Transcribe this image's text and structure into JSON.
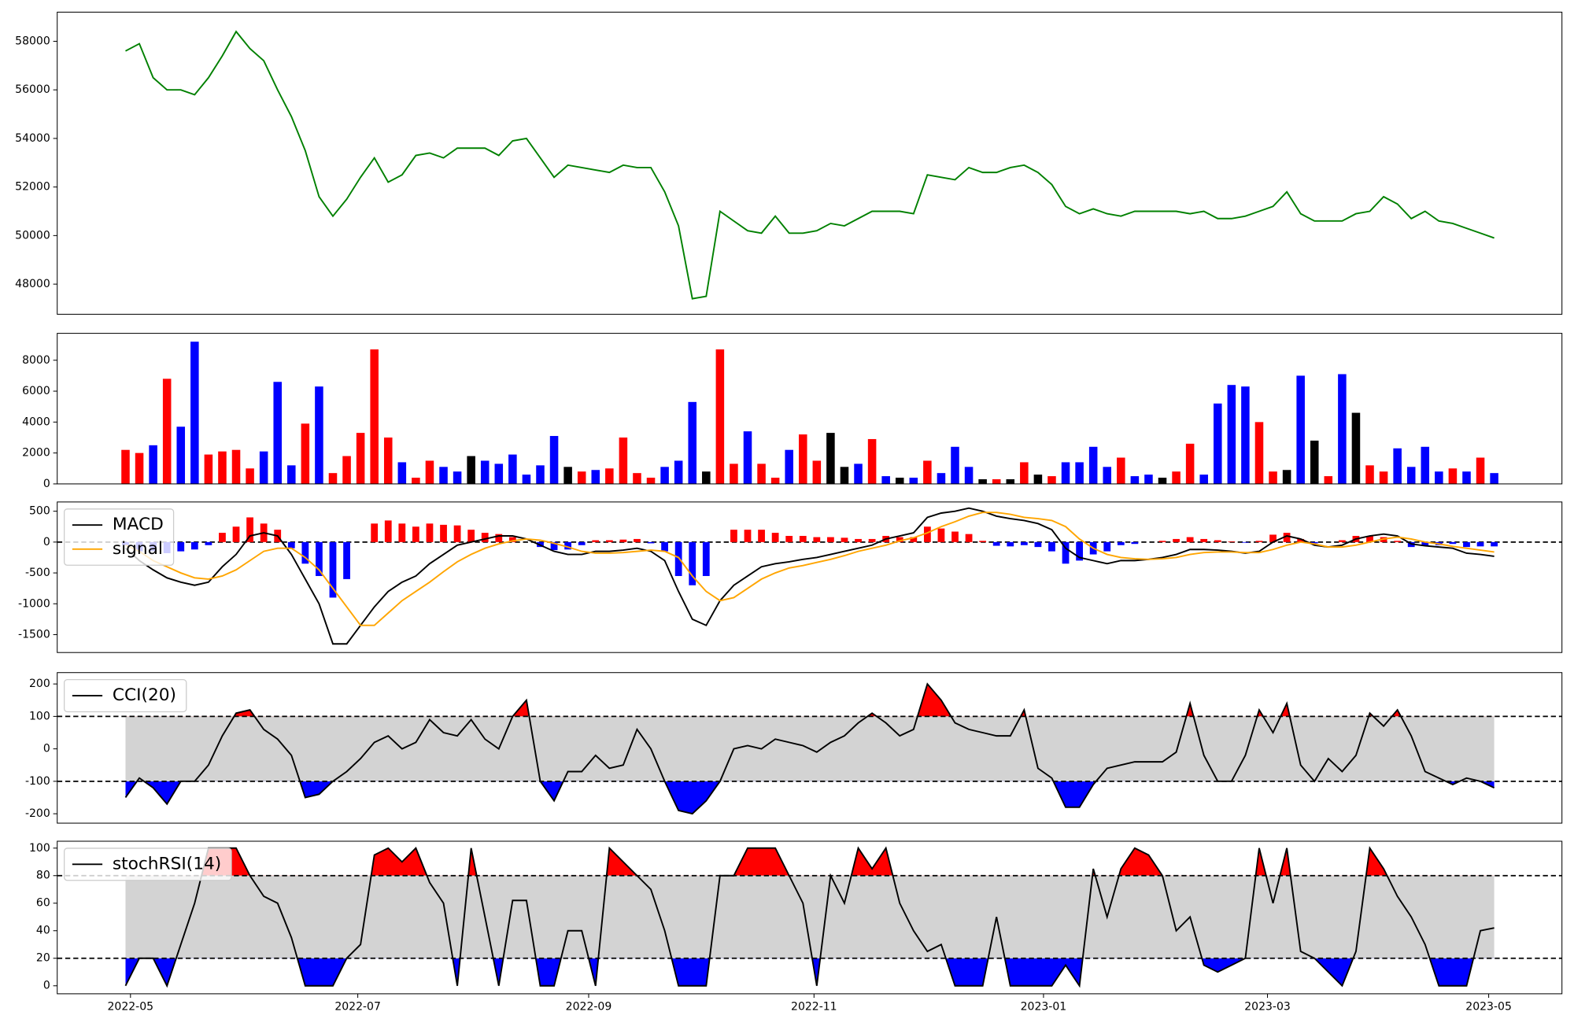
{
  "chart_data": [
    {
      "type": "line",
      "xlim": [
        -4.94,
        103.9
      ],
      "ylim": [
        46760,
        59200
      ],
      "yticks": [
        48000,
        50000,
        52000,
        54000,
        56000,
        58000
      ],
      "series": [
        {
          "color": "green",
          "values": [
            57600,
            57900,
            56500,
            56000,
            56000,
            55800,
            56500,
            57400,
            58400,
            57700,
            57200,
            56000,
            54900,
            53500,
            51600,
            50800,
            51500,
            52400,
            53200,
            52200,
            52500,
            53300,
            53400,
            53200,
            53600,
            53600,
            53600,
            53300,
            53900,
            54000,
            53200,
            52400,
            52900,
            52800,
            52700,
            52600,
            52900,
            52800,
            52800,
            51800,
            50400,
            47400,
            47500,
            51000,
            50600,
            50200,
            50100,
            50800,
            50100,
            50100,
            50200,
            50500,
            50400,
            50700,
            51000,
            51000,
            51000,
            50900,
            52500,
            52400,
            52300,
            52800,
            52600,
            52600,
            52800,
            52900,
            52600,
            52100,
            51200,
            50900,
            51100,
            50900,
            50800,
            51000,
            51000,
            51000,
            51000,
            50900,
            51000,
            50700,
            50700,
            50800,
            51000,
            51200,
            51800,
            50900,
            50600,
            50600,
            50600,
            50900,
            51000,
            51600,
            51300,
            50700,
            51000,
            50600,
            50500,
            50300,
            50100,
            49900
          ]
        }
      ]
    },
    {
      "type": "bar",
      "xlim": [
        -4.94,
        103.9
      ],
      "ylim": [
        0,
        9740
      ],
      "yticks": [
        0,
        2000,
        4000,
        6000,
        8000
      ],
      "values": [
        2200,
        2000,
        2500,
        6800,
        3700,
        9200,
        1900,
        2100,
        2200,
        1000,
        2100,
        6600,
        1200,
        3900,
        6300,
        700,
        1800,
        3300,
        8700,
        3000,
        1400,
        400,
        1500,
        1100,
        800,
        1800,
        1500,
        1300,
        1900,
        600,
        1200,
        3100,
        1100,
        800,
        900,
        1000,
        3000,
        700,
        400,
        1100,
        1500,
        5300,
        800,
        8700,
        1300,
        3400,
        1300,
        400,
        2200,
        3200,
        1500,
        3300,
        1100,
        1300,
        2900,
        500,
        400,
        400,
        1500,
        700,
        2400,
        1100,
        300,
        300,
        300,
        1400,
        600,
        500,
        1400,
        1400,
        2400,
        1100,
        1700,
        500,
        600,
        400,
        800,
        2600,
        600,
        5200,
        6400,
        6300,
        4000,
        800,
        900,
        7000,
        2800,
        500,
        7100,
        4600,
        1200,
        800,
        2300,
        1100,
        2400,
        800,
        1000,
        800,
        1700,
        700
      ],
      "colors": [
        "red",
        "red",
        "blue",
        "red",
        "blue",
        "blue",
        "red",
        "red",
        "red",
        "red",
        "blue",
        "blue",
        "blue",
        "red",
        "blue",
        "red",
        "red",
        "red",
        "red",
        "red",
        "blue",
        "red",
        "red",
        "blue",
        "blue",
        "black",
        "blue",
        "blue",
        "blue",
        "blue",
        "blue",
        "blue",
        "black",
        "red",
        "blue",
        "red",
        "red",
        "red",
        "red",
        "blue",
        "blue",
        "blue",
        "black",
        "red",
        "red",
        "blue",
        "red",
        "red",
        "blue",
        "red",
        "red",
        "black",
        "black",
        "blue",
        "red",
        "blue",
        "black",
        "blue",
        "red",
        "blue",
        "blue",
        "blue",
        "black",
        "red",
        "black",
        "red",
        "black",
        "red",
        "blue",
        "blue",
        "blue",
        "blue",
        "red",
        "blue",
        "blue",
        "black",
        "red",
        "red",
        "blue",
        "blue",
        "blue",
        "blue",
        "red",
        "red",
        "black",
        "blue",
        "black",
        "red",
        "blue",
        "black",
        "red",
        "red",
        "blue",
        "blue",
        "blue",
        "blue",
        "red",
        "blue",
        "red",
        "blue"
      ]
    },
    {
      "type": "line",
      "xlim": [
        -4.94,
        103.9
      ],
      "ylim": [
        -1790,
        650
      ],
      "yticks": [
        -1500,
        -1000,
        -500,
        0,
        500
      ],
      "zero_line": 0,
      "legend": "upper left",
      "series": [
        {
          "kind": "bar",
          "colors": [
            "red",
            "blue"
          ],
          "values": [
            -50,
            -150,
            -150,
            -180,
            -150,
            -120,
            -50,
            150,
            250,
            400,
            300,
            200,
            -100,
            -350,
            -550,
            -900,
            -600,
            0,
            300,
            350,
            300,
            250,
            300,
            280,
            270,
            200,
            150,
            130,
            80,
            0,
            -80,
            -130,
            -120,
            -50,
            30,
            30,
            40,
            50,
            -20,
            -150,
            -550,
            -700,
            -550,
            0,
            200,
            200,
            200,
            150,
            100,
            100,
            80,
            80,
            70,
            50,
            50,
            100,
            80,
            80,
            250,
            220,
            170,
            130,
            20,
            -60,
            -70,
            -50,
            -80,
            -150,
            -350,
            -300,
            -200,
            -150,
            -50,
            -30,
            0,
            20,
            50,
            80,
            50,
            30,
            10,
            -10,
            20,
            120,
            150,
            50,
            -20,
            0,
            30,
            100,
            100,
            80,
            20,
            -80,
            -60,
            -50,
            -30,
            -80,
            -70,
            -70
          ]
        },
        {
          "name": "MACD",
          "color": "black",
          "values": [
            -100,
            -300,
            -450,
            -580,
            -650,
            -700,
            -650,
            -400,
            -200,
            100,
            150,
            100,
            -200,
            -600,
            -1000,
            -1650,
            -1650,
            -1350,
            -1050,
            -800,
            -650,
            -550,
            -350,
            -200,
            -50,
            0,
            50,
            100,
            100,
            50,
            -50,
            -150,
            -200,
            -200,
            -150,
            -150,
            -130,
            -100,
            -150,
            -300,
            -800,
            -1250,
            -1350,
            -950,
            -700,
            -550,
            -400,
            -350,
            -320,
            -280,
            -250,
            -200,
            -150,
            -100,
            -50,
            50,
            100,
            150,
            400,
            470,
            500,
            550,
            500,
            420,
            380,
            350,
            300,
            200,
            -100,
            -250,
            -300,
            -350,
            -300,
            -300,
            -280,
            -250,
            -200,
            -120,
            -120,
            -130,
            -150,
            -180,
            -150,
            0,
            100,
            50,
            -50,
            -80,
            -50,
            50,
            100,
            130,
            100,
            -30,
            -60,
            -80,
            -100,
            -180,
            -200,
            -230
          ]
        },
        {
          "name": "signal",
          "color": "orange",
          "values": [
            -50,
            -150,
            -300,
            -400,
            -500,
            -580,
            -600,
            -550,
            -450,
            -300,
            -150,
            -100,
            -100,
            -250,
            -450,
            -750,
            -1050,
            -1350,
            -1350,
            -1150,
            -950,
            -800,
            -650,
            -480,
            -320,
            -200,
            -100,
            -30,
            20,
            50,
            30,
            -20,
            -80,
            -150,
            -180,
            -180,
            -170,
            -150,
            -130,
            -150,
            -250,
            -550,
            -800,
            -950,
            -900,
            -750,
            -600,
            -500,
            -420,
            -380,
            -330,
            -280,
            -220,
            -150,
            -100,
            -50,
            20,
            70,
            150,
            250,
            330,
            420,
            480,
            480,
            450,
            400,
            380,
            350,
            250,
            50,
            -100,
            -200,
            -250,
            -270,
            -280,
            -270,
            -250,
            -200,
            -170,
            -160,
            -160,
            -170,
            -170,
            -120,
            -50,
            0,
            -30,
            -80,
            -80,
            -50,
            0,
            50,
            80,
            50,
            0,
            -30,
            -70,
            -100,
            -130,
            -160
          ]
        }
      ]
    },
    {
      "type": "line",
      "xlim": [
        -4.94,
        103.9
      ],
      "ylim": [
        -229,
        235
      ],
      "yticks": [
        -200,
        -100,
        0,
        100,
        200
      ],
      "thresholds": [
        -100,
        100
      ],
      "band_color": "lightgray",
      "above_color": "red",
      "below_color": "blue",
      "legend": "upper left",
      "series": [
        {
          "name": "CCI(20)",
          "color": "black",
          "values": [
            -150,
            -90,
            -120,
            -170,
            -100,
            -100,
            -50,
            40,
            110,
            120,
            60,
            30,
            -20,
            -150,
            -140,
            -100,
            -70,
            -30,
            20,
            40,
            0,
            20,
            90,
            50,
            40,
            90,
            30,
            0,
            100,
            150,
            -100,
            -160,
            -70,
            -70,
            -20,
            -60,
            -50,
            60,
            0,
            -100,
            -190,
            -200,
            -160,
            -100,
            0,
            10,
            0,
            30,
            20,
            10,
            -10,
            20,
            40,
            80,
            110,
            80,
            40,
            60,
            200,
            150,
            80,
            60,
            50,
            40,
            40,
            120,
            -60,
            -90,
            -180,
            -180,
            -110,
            -60,
            -50,
            -40,
            -40,
            -40,
            -10,
            140,
            -20,
            -100,
            -100,
            -20,
            120,
            50,
            140,
            -50,
            -100,
            -30,
            -70,
            -20,
            110,
            70,
            120,
            40,
            -70,
            -90,
            -110,
            -90,
            -100,
            -120
          ]
        }
      ]
    },
    {
      "type": "line",
      "xlim": [
        -4.94,
        103.9
      ],
      "ylim": [
        -5.8,
        105
      ],
      "yticks": [
        0,
        20,
        40,
        60,
        80,
        100
      ],
      "thresholds": [
        20,
        80
      ],
      "band_color": "lightgray",
      "above_color": "red",
      "below_color": "blue",
      "legend": "upper left",
      "xticks": [
        {
          "value": 0.36,
          "label": "2022-05"
        },
        {
          "value": 16.8,
          "label": "2022-07"
        },
        {
          "value": 33.5,
          "label": "2022-09"
        },
        {
          "value": 49.8,
          "label": "2022-11"
        },
        {
          "value": 66.4,
          "label": "2023-01"
        },
        {
          "value": 82.6,
          "label": "2023-03"
        },
        {
          "value": 98.6,
          "label": "2023-05"
        }
      ],
      "series": [
        {
          "name": "stochRSI(14)",
          "color": "black",
          "values": [
            0,
            20,
            20,
            0,
            30,
            60,
            100,
            100,
            100,
            80,
            65,
            60,
            35,
            0,
            0,
            0,
            20,
            30,
            95,
            100,
            90,
            100,
            75,
            60,
            0,
            100,
            50,
            0,
            62,
            62,
            0,
            0,
            40,
            40,
            0,
            100,
            90,
            80,
            70,
            40,
            0,
            0,
            0,
            80,
            80,
            100,
            100,
            100,
            80,
            60,
            0,
            80,
            60,
            100,
            85,
            100,
            60,
            40,
            25,
            30,
            0,
            0,
            0,
            50,
            0,
            0,
            0,
            0,
            15,
            0,
            85,
            50,
            85,
            100,
            95,
            80,
            40,
            50,
            15,
            10,
            15,
            20,
            100,
            60,
            100,
            25,
            20,
            10,
            0,
            25,
            100,
            85,
            65,
            50,
            30,
            0,
            0,
            0,
            40,
            42
          ]
        }
      ]
    }
  ]
}
